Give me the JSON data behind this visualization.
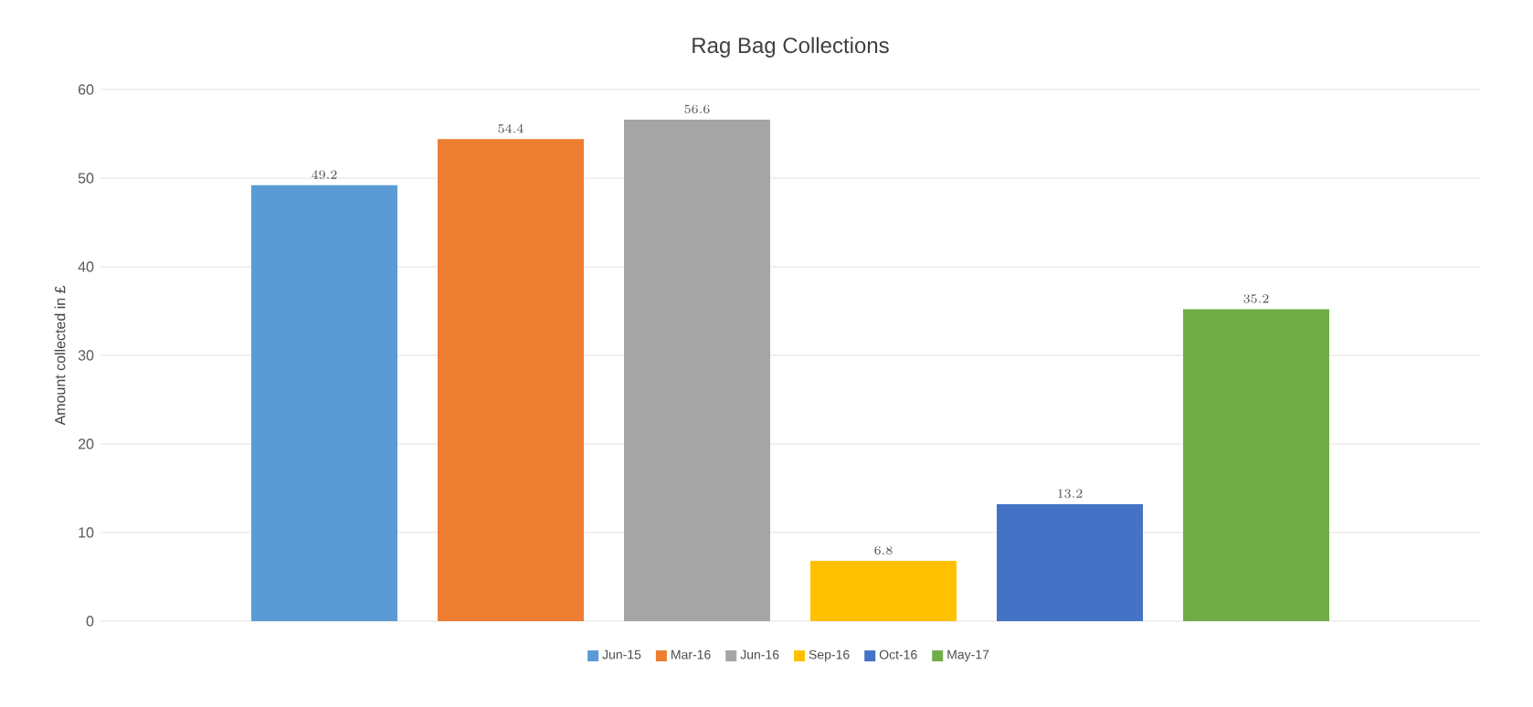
{
  "chart_data": {
    "type": "bar",
    "title": "Rag Bag Collections",
    "ylabel": "Amount  collected in £",
    "categories": [
      null
    ],
    "series": [
      {
        "name": "Jun-15",
        "color": "#5b9bd5",
        "values": [
          49.2
        ]
      },
      {
        "name": "Mar-16",
        "color": "#ed7d31",
        "values": [
          54.4
        ]
      },
      {
        "name": "Jun-16",
        "color": "#a5a5a5",
        "values": [
          56.6
        ]
      },
      {
        "name": "Sep-16",
        "color": "#ffc000",
        "values": [
          6.8
        ]
      },
      {
        "name": "Oct-16",
        "color": "#4472c4",
        "values": [
          13.2
        ]
      },
      {
        "name": "May-17",
        "color": "#70ad47",
        "values": [
          35.2
        ]
      }
    ],
    "ylim": [
      0,
      60
    ],
    "yticks": [
      0,
      10,
      20,
      30,
      40,
      50,
      60
    ],
    "grid": "y",
    "legend": "bottom",
    "data_labels": true
  }
}
